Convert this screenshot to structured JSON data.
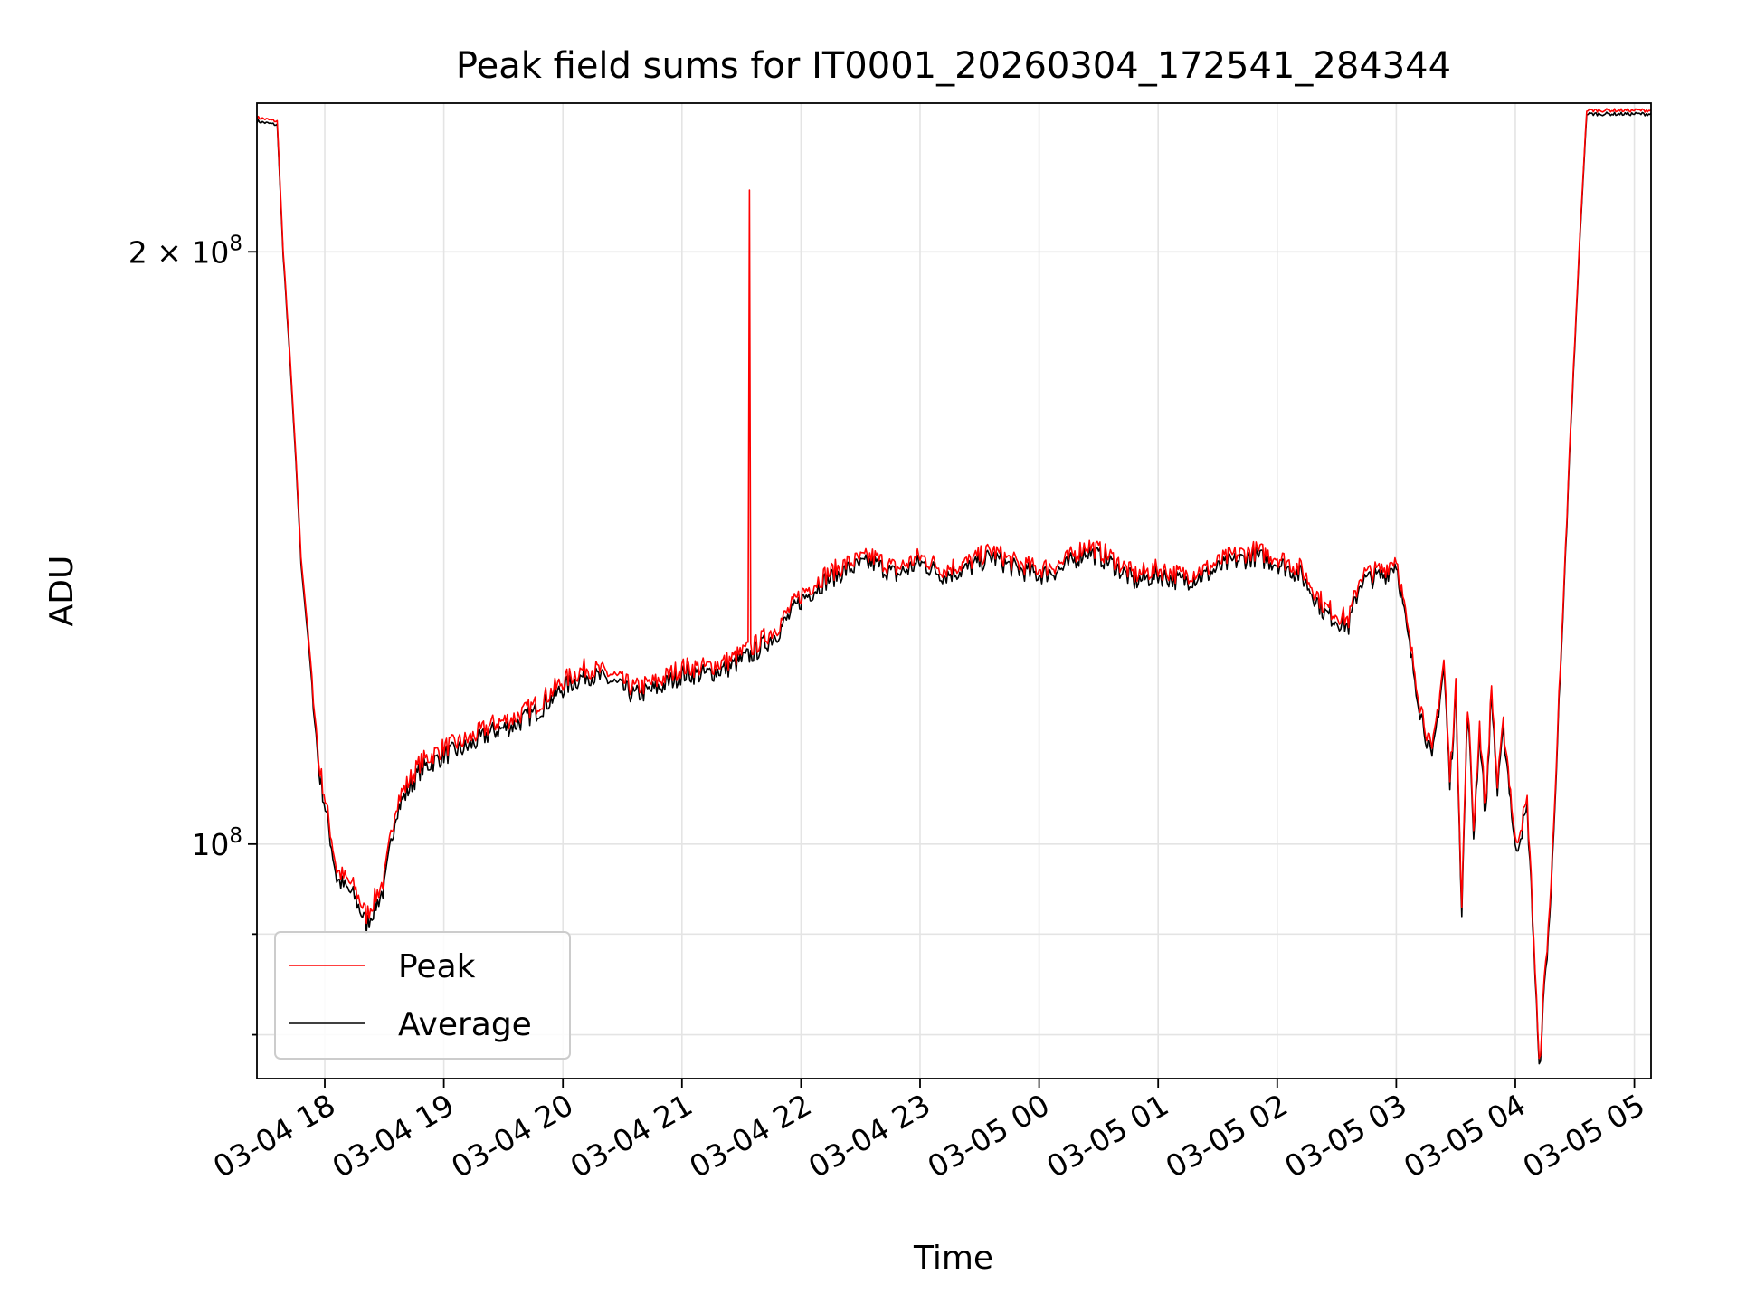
{
  "chart_data": {
    "type": "line",
    "title": "Peak field sums for IT0001_20260304_172541_284344",
    "xlabel": "Time",
    "ylabel": "ADU",
    "yscale": "log",
    "ylim": [
      76000000,
      238000000
    ],
    "xlim_hours": [
      17.43,
      29.14
    ],
    "grid": true,
    "legend_position": "lower left",
    "x_tick_labels": [
      "03-04 18",
      "03-04 19",
      "03-04 20",
      "03-04 21",
      "03-04 22",
      "03-04 23",
      "03-05 00",
      "03-05 01",
      "03-05 02",
      "03-05 03",
      "03-05 04",
      "03-05 05"
    ],
    "x_tick_hours": [
      18,
      19,
      20,
      21,
      22,
      23,
      24,
      25,
      26,
      27,
      28,
      29
    ],
    "y_major_ticks": [
      {
        "value": 100000000,
        "base": "10",
        "exponent": "8"
      },
      {
        "value": 200000000,
        "prefix": "2",
        "times": "×",
        "base": "10",
        "exponent": "8"
      }
    ],
    "y_minor_ticks": [
      80000000,
      90000000
    ],
    "x_hours": [
      17.43,
      17.6,
      17.65,
      17.8,
      17.95,
      18.1,
      18.25,
      18.35,
      18.5,
      18.6,
      18.8,
      19.0,
      19.2,
      19.4,
      19.6,
      19.8,
      20.0,
      20.2,
      20.4,
      20.6,
      20.8,
      21.0,
      21.2,
      21.4,
      21.6,
      21.8,
      22.0,
      22.2,
      22.4,
      22.6,
      22.8,
      23.0,
      23.2,
      23.4,
      23.6,
      23.8,
      24.0,
      24.2,
      24.4,
      24.6,
      24.8,
      25.0,
      25.2,
      25.4,
      25.6,
      25.8,
      26.0,
      26.2,
      26.4,
      26.6,
      26.7,
      26.9,
      27.0,
      27.1,
      27.2,
      27.3,
      27.4,
      27.45,
      27.5,
      27.55,
      27.6,
      27.65,
      27.7,
      27.75,
      27.8,
      27.85,
      27.9,
      27.95,
      28.0,
      28.1,
      28.2,
      28.3,
      28.4,
      28.5,
      28.6,
      28.7,
      28.8,
      28.9,
      29.0,
      29.1,
      29.14
    ],
    "series": [
      {
        "name": "Peak",
        "color": "#ff0000",
        "values": [
          234000000,
          233000000,
          200000000,
          140000000,
          110000000,
          97000000,
          95000000,
          92000000,
          96000000,
          105000000,
          110000000,
          112000000,
          113000000,
          115000000,
          116000000,
          118000000,
          121000000,
          123000000,
          122000000,
          120000000,
          121000000,
          123000000,
          123000000,
          124000000,
          126000000,
          129000000,
          134000000,
          137000000,
          139000000,
          140000000,
          138000000,
          140000000,
          138000000,
          139000000,
          141000000,
          139000000,
          138000000,
          139000000,
          142000000,
          140000000,
          137000000,
          138000000,
          137000000,
          138000000,
          140000000,
          141000000,
          140000000,
          138000000,
          132000000,
          130000000,
          137000000,
          138000000,
          140000000,
          128000000,
          118000000,
          111000000,
          124000000,
          108000000,
          120000000,
          93000000,
          118000000,
          102000000,
          115000000,
          104000000,
          120000000,
          107000000,
          115000000,
          108000000,
          100000000,
          105000000,
          77000000,
          95000000,
          130000000,
          180000000,
          236000000,
          236000000,
          236000000,
          236000000,
          236000000,
          236000000,
          236000000
        ],
        "spike": {
          "x_hour": 21.57,
          "value": 215000000
        }
      },
      {
        "name": "Average",
        "color": "#000000",
        "values": [
          233000000,
          232000000,
          199000000,
          139000000,
          109000000,
          96000000,
          94000000,
          91000000,
          95000000,
          104000000,
          109000000,
          111000000,
          112000000,
          114000000,
          115000000,
          117000000,
          120000000,
          122000000,
          121000000,
          119000000,
          120000000,
          122000000,
          122000000,
          123000000,
          125000000,
          128000000,
          133000000,
          136000000,
          138000000,
          139000000,
          137000000,
          139000000,
          137000000,
          138000000,
          140000000,
          138000000,
          137000000,
          138000000,
          141000000,
          139000000,
          136000000,
          137000000,
          136000000,
          137000000,
          139000000,
          140000000,
          139000000,
          137000000,
          131000000,
          129000000,
          136000000,
          137000000,
          139000000,
          127000000,
          117000000,
          110000000,
          123000000,
          107000000,
          119000000,
          92000000,
          117000000,
          101000000,
          114000000,
          103000000,
          119000000,
          106000000,
          114000000,
          107000000,
          99000000,
          104000000,
          76500000,
          94000000,
          129000000,
          179000000,
          235000000,
          235000000,
          235000000,
          235000000,
          235000000,
          235000000,
          235000000
        ]
      }
    ]
  }
}
